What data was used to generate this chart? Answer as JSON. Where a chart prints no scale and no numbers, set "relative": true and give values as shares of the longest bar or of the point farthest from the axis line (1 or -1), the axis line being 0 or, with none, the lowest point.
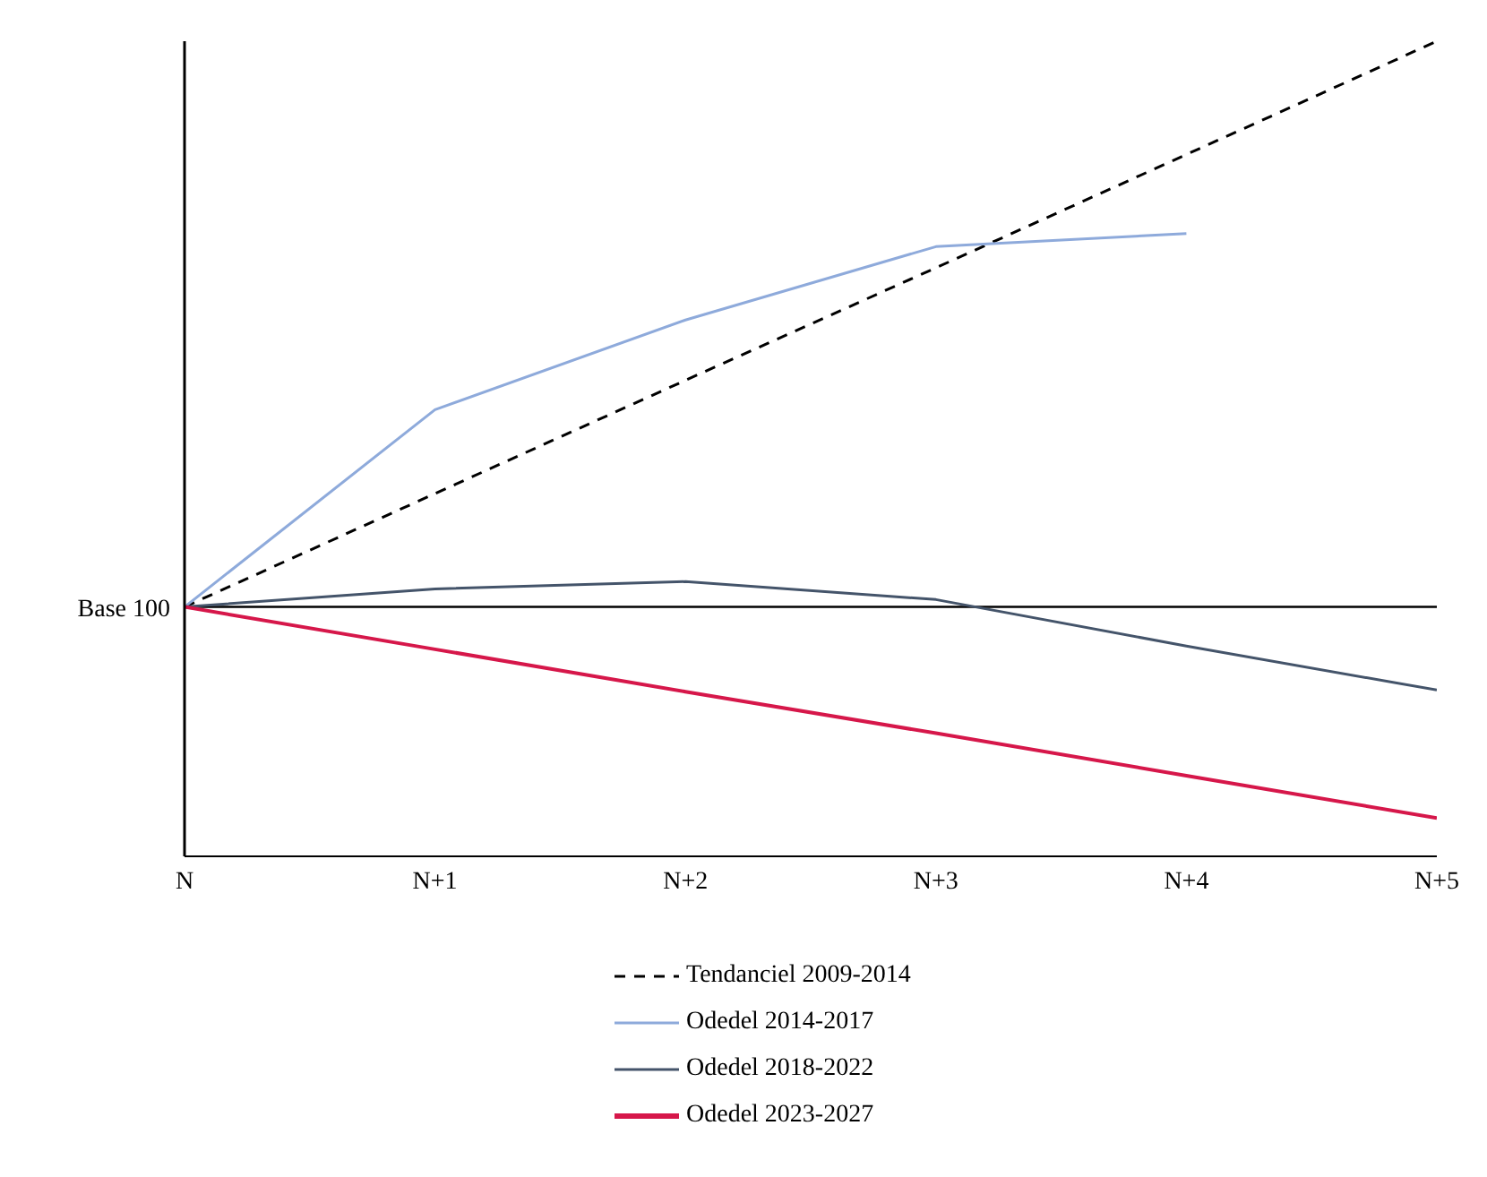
{
  "chart_data": {
    "type": "line",
    "relative": true,
    "categories": [
      "N",
      "N+1",
      "N+2",
      "N+3",
      "N+4",
      "N+5"
    ],
    "series": [
      {
        "name": "Tendanciel 2009-2014",
        "color": "#000000",
        "line_style": "dashed",
        "values": [
          0.306,
          0.445,
          0.584,
          0.722,
          0.861,
          1.0
        ]
      },
      {
        "name": "Odedel 2014-2017",
        "color": "#8eaadb",
        "values": [
          0.306,
          0.548,
          0.658,
          0.748,
          0.764,
          null
        ]
      },
      {
        "name": "Odedel 2018-2022",
        "color": "#44546a",
        "values": [
          0.306,
          0.328,
          0.337,
          0.315,
          0.258,
          0.204
        ]
      },
      {
        "name": "Odedel 2023-2027",
        "color": "#d6174a",
        "values": [
          0.306,
          0.254,
          0.202,
          0.151,
          0.099,
          0.047
        ]
      }
    ],
    "ref_lines": [
      {
        "axis": "y",
        "value": 0.306,
        "label": "Base 100",
        "color": "#000000"
      }
    ],
    "legend": "bottom",
    "marker": "none"
  }
}
